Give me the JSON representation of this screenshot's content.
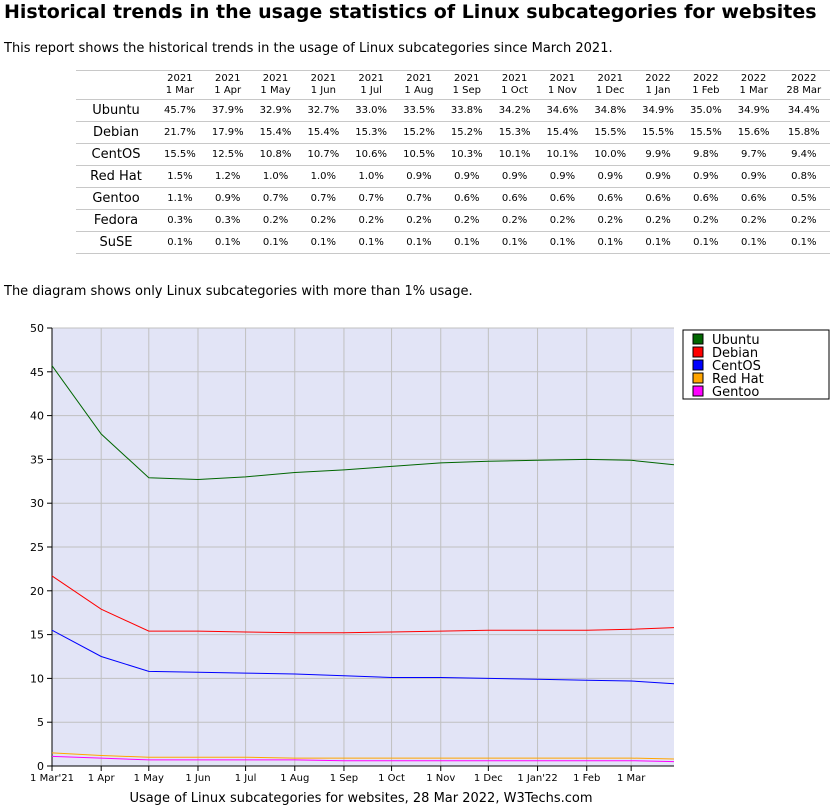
{
  "header": {
    "title": "Historical trends in the usage statistics of Linux subcategories for websites",
    "intro": "This report shows the historical trends in the usage of Linux subcategories since March 2021.",
    "note": "The diagram shows only Linux subcategories with more than 1% usage."
  },
  "table": {
    "columns": [
      {
        "year": "2021",
        "day": "1 Mar"
      },
      {
        "year": "2021",
        "day": "1 Apr"
      },
      {
        "year": "2021",
        "day": "1 May"
      },
      {
        "year": "2021",
        "day": "1 Jun"
      },
      {
        "year": "2021",
        "day": "1 Jul"
      },
      {
        "year": "2021",
        "day": "1 Aug"
      },
      {
        "year": "2021",
        "day": "1 Sep"
      },
      {
        "year": "2021",
        "day": "1 Oct"
      },
      {
        "year": "2021",
        "day": "1 Nov"
      },
      {
        "year": "2021",
        "day": "1 Dec"
      },
      {
        "year": "2022",
        "day": "1 Jan"
      },
      {
        "year": "2022",
        "day": "1 Feb"
      },
      {
        "year": "2022",
        "day": "1 Mar"
      },
      {
        "year": "2022",
        "day": "28 Mar"
      }
    ],
    "rows": [
      {
        "name": "Ubuntu",
        "values": [
          "45.7%",
          "37.9%",
          "32.9%",
          "32.7%",
          "33.0%",
          "33.5%",
          "33.8%",
          "34.2%",
          "34.6%",
          "34.8%",
          "34.9%",
          "35.0%",
          "34.9%",
          "34.4%"
        ]
      },
      {
        "name": "Debian",
        "values": [
          "21.7%",
          "17.9%",
          "15.4%",
          "15.4%",
          "15.3%",
          "15.2%",
          "15.2%",
          "15.3%",
          "15.4%",
          "15.5%",
          "15.5%",
          "15.5%",
          "15.6%",
          "15.8%"
        ]
      },
      {
        "name": "CentOS",
        "values": [
          "15.5%",
          "12.5%",
          "10.8%",
          "10.7%",
          "10.6%",
          "10.5%",
          "10.3%",
          "10.1%",
          "10.1%",
          "10.0%",
          "9.9%",
          "9.8%",
          "9.7%",
          "9.4%"
        ]
      },
      {
        "name": "Red Hat",
        "values": [
          "1.5%",
          "1.2%",
          "1.0%",
          "1.0%",
          "1.0%",
          "0.9%",
          "0.9%",
          "0.9%",
          "0.9%",
          "0.9%",
          "0.9%",
          "0.9%",
          "0.9%",
          "0.8%"
        ]
      },
      {
        "name": "Gentoo",
        "values": [
          "1.1%",
          "0.9%",
          "0.7%",
          "0.7%",
          "0.7%",
          "0.7%",
          "0.6%",
          "0.6%",
          "0.6%",
          "0.6%",
          "0.6%",
          "0.6%",
          "0.6%",
          "0.5%"
        ]
      },
      {
        "name": "Fedora",
        "values": [
          "0.3%",
          "0.3%",
          "0.2%",
          "0.2%",
          "0.2%",
          "0.2%",
          "0.2%",
          "0.2%",
          "0.2%",
          "0.2%",
          "0.2%",
          "0.2%",
          "0.2%",
          "0.2%"
        ]
      },
      {
        "name": "SuSE",
        "values": [
          "0.1%",
          "0.1%",
          "0.1%",
          "0.1%",
          "0.1%",
          "0.1%",
          "0.1%",
          "0.1%",
          "0.1%",
          "0.1%",
          "0.1%",
          "0.1%",
          "0.1%",
          "0.1%"
        ]
      }
    ]
  },
  "chart_data": {
    "type": "line",
    "title": "Usage of Linux subcategories for websites, 28 Mar 2022, W3Techs.com",
    "x_dates": [
      "2021-03-01",
      "2021-04-01",
      "2021-05-01",
      "2021-06-01",
      "2021-07-01",
      "2021-08-01",
      "2021-09-01",
      "2021-10-01",
      "2021-11-01",
      "2021-12-01",
      "2022-01-01",
      "2022-02-01",
      "2022-03-01",
      "2022-03-28"
    ],
    "x_range": [
      "2021-03-01",
      "2022-03-28"
    ],
    "x_ticks": [
      {
        "date": "2021-03-01",
        "label": "1 Mar'21"
      },
      {
        "date": "2021-04-01",
        "label": "1 Apr"
      },
      {
        "date": "2021-05-01",
        "label": "1 May"
      },
      {
        "date": "2021-06-01",
        "label": "1 Jun"
      },
      {
        "date": "2021-07-01",
        "label": "1 Jul"
      },
      {
        "date": "2021-08-01",
        "label": "1 Aug"
      },
      {
        "date": "2021-09-01",
        "label": "1 Sep"
      },
      {
        "date": "2021-10-01",
        "label": "1 Oct"
      },
      {
        "date": "2021-11-01",
        "label": "1 Nov"
      },
      {
        "date": "2021-12-01",
        "label": "1 Dec"
      },
      {
        "date": "2022-01-01",
        "label": "1 Jan'22"
      },
      {
        "date": "2022-02-01",
        "label": "1 Feb"
      },
      {
        "date": "2022-03-01",
        "label": "1 Mar"
      }
    ],
    "ylim": [
      0,
      50
    ],
    "y_ticks": [
      0,
      5,
      10,
      15,
      20,
      25,
      30,
      35,
      40,
      45,
      50
    ],
    "grid": true,
    "legend_position": "top-right",
    "background_color": "#e2e4f6",
    "grid_color": "#c0c0c0",
    "series": [
      {
        "name": "Ubuntu",
        "color": "#006600",
        "values": [
          45.7,
          37.9,
          32.9,
          32.7,
          33.0,
          33.5,
          33.8,
          34.2,
          34.6,
          34.8,
          34.9,
          35.0,
          34.9,
          34.4
        ]
      },
      {
        "name": "Debian",
        "color": "#ff0000",
        "values": [
          21.7,
          17.9,
          15.4,
          15.4,
          15.3,
          15.2,
          15.2,
          15.3,
          15.4,
          15.5,
          15.5,
          15.5,
          15.6,
          15.8
        ]
      },
      {
        "name": "CentOS",
        "color": "#0000ff",
        "values": [
          15.5,
          12.5,
          10.8,
          10.7,
          10.6,
          10.5,
          10.3,
          10.1,
          10.1,
          10.0,
          9.9,
          9.8,
          9.7,
          9.4
        ]
      },
      {
        "name": "Red Hat",
        "color": "#ffa500",
        "values": [
          1.5,
          1.2,
          1.0,
          1.0,
          1.0,
          0.9,
          0.9,
          0.9,
          0.9,
          0.9,
          0.9,
          0.9,
          0.9,
          0.8
        ]
      },
      {
        "name": "Gentoo",
        "color": "#ff00ff",
        "values": [
          1.1,
          0.9,
          0.7,
          0.7,
          0.7,
          0.7,
          0.6,
          0.6,
          0.6,
          0.6,
          0.6,
          0.6,
          0.6,
          0.5
        ]
      }
    ]
  }
}
